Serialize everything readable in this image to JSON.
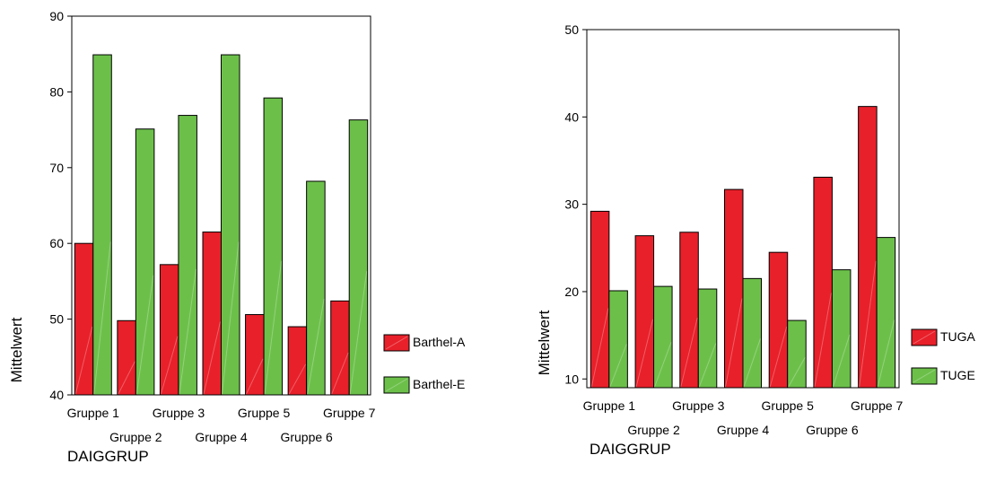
{
  "colors": {
    "red": "#e8202a",
    "green": "#6cc04a"
  },
  "chart_data": [
    {
      "type": "bar",
      "xlabel": "DAIGGRUP",
      "ylabel": "Mittelwert",
      "ylim": [
        40,
        90
      ],
      "yticks": [
        40,
        50,
        60,
        70,
        80,
        90
      ],
      "categories": [
        "Gruppe 1",
        "Gruppe 2",
        "Gruppe 3",
        "Gruppe 4",
        "Gruppe 5",
        "Gruppe 6",
        "Gruppe 7"
      ],
      "legend_position": "right",
      "series": [
        {
          "name": "Barthel-A",
          "color": "#e8202a",
          "values": [
            60.0,
            49.8,
            57.2,
            61.5,
            50.6,
            49.0,
            52.4
          ]
        },
        {
          "name": "Barthel-E",
          "color": "#6cc04a",
          "values": [
            84.9,
            75.1,
            76.9,
            84.9,
            79.2,
            68.2,
            76.3
          ]
        }
      ]
    },
    {
      "type": "bar",
      "xlabel": "DAIGGRUP",
      "ylabel": "Mittelwert",
      "ylim": [
        9,
        50
      ],
      "yticks": [
        10,
        20,
        30,
        40,
        50
      ],
      "categories": [
        "Gruppe 1",
        "Gruppe 2",
        "Gruppe 3",
        "Gruppe 4",
        "Gruppe 5",
        "Gruppe 6",
        "Gruppe 7"
      ],
      "legend_position": "right",
      "series": [
        {
          "name": "TUGA",
          "color": "#e8202a",
          "values": [
            29.2,
            26.4,
            26.8,
            31.7,
            24.5,
            33.1,
            41.2
          ]
        },
        {
          "name": "TUGE",
          "color": "#6cc04a",
          "values": [
            20.1,
            20.6,
            20.3,
            21.5,
            16.7,
            22.5,
            26.2
          ]
        }
      ]
    }
  ]
}
